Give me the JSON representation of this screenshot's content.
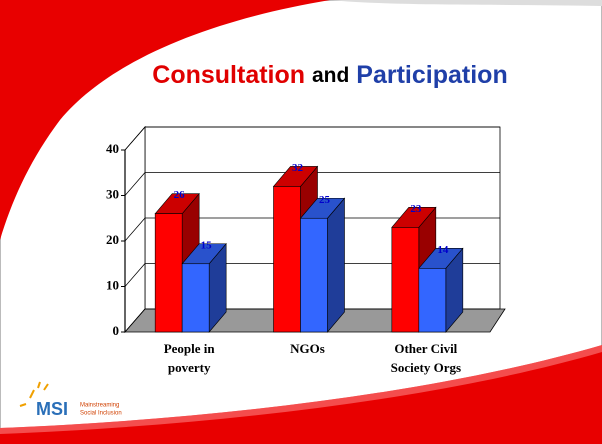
{
  "chart_data": {
    "type": "bar3d",
    "title": [
      "Consultation",
      "and",
      "Participation"
    ],
    "title_colors": [
      "#e00000",
      "#000000",
      "#1f3fa8"
    ],
    "categories": [
      [
        "People in",
        "poverty"
      ],
      [
        "NGOs"
      ],
      [
        "Other Civil",
        "Society Orgs"
      ]
    ],
    "series": [
      {
        "color": "#ff0000",
        "values": [
          26,
          32,
          23
        ]
      },
      {
        "color": "#3366ff",
        "values": [
          15,
          25,
          14
        ]
      }
    ],
    "ylim": [
      0,
      40
    ],
    "yticks": [
      0,
      10,
      20,
      30,
      40
    ],
    "grid": true
  },
  "logo": {
    "text": "MSI",
    "tagline": [
      "Mainstreaming",
      "Social Inclusion"
    ]
  }
}
